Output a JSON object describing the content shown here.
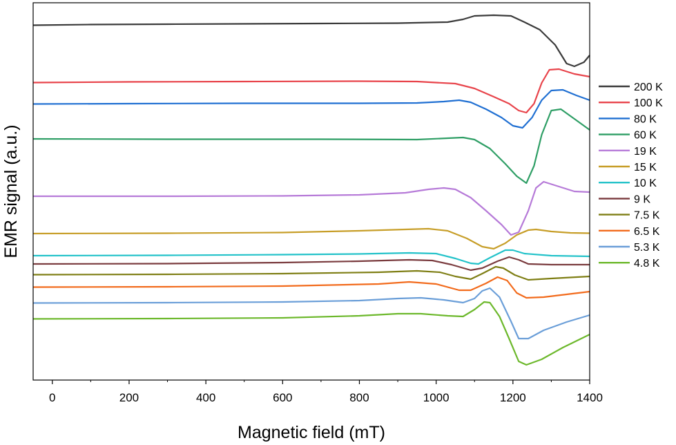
{
  "chart_data": {
    "type": "line",
    "title": "",
    "xlabel": "Magnetic field (mT)",
    "ylabel": "EMR signal (a.u.)",
    "xlim": [
      -50,
      1400
    ],
    "xticks": [
      0,
      200,
      400,
      600,
      800,
      1000,
      1200,
      1400
    ],
    "yticks": [],
    "grid": false,
    "legend": "right",
    "y_units": "arbitrary",
    "series": [
      {
        "name": "200 K",
        "color": "#3a3a3a",
        "points": [
          [
            -50,
            -36.5
          ],
          [
            100,
            -35.5
          ],
          [
            300,
            -35
          ],
          [
            500,
            -34.5
          ],
          [
            700,
            -34
          ],
          [
            900,
            -33.5
          ],
          [
            1030,
            -32
          ],
          [
            1070,
            -28
          ],
          [
            1100,
            -23
          ],
          [
            1150,
            -22
          ],
          [
            1195,
            -23
          ],
          [
            1230,
            -32
          ],
          [
            1270,
            -43
          ],
          [
            1310,
            -65
          ],
          [
            1340,
            -92
          ],
          [
            1360,
            -96
          ],
          [
            1385,
            -90
          ],
          [
            1400,
            -80
          ]
        ]
      },
      {
        "name": "100 K",
        "color": "#e8434a",
        "points": [
          [
            -50,
            -119.5
          ],
          [
            200,
            -118.5
          ],
          [
            500,
            -118
          ],
          [
            800,
            -117.5
          ],
          [
            950,
            -118
          ],
          [
            1050,
            -121
          ],
          [
            1100,
            -128
          ],
          [
            1150,
            -140
          ],
          [
            1190,
            -150
          ],
          [
            1215,
            -160
          ],
          [
            1235,
            -163
          ],
          [
            1255,
            -150
          ],
          [
            1275,
            -120
          ],
          [
            1295,
            -101
          ],
          [
            1320,
            -100
          ],
          [
            1360,
            -107
          ],
          [
            1400,
            -111
          ]
        ]
      },
      {
        "name": "80 K",
        "color": "#1f6fd2",
        "points": [
          [
            -50,
            -150.5
          ],
          [
            200,
            -150
          ],
          [
            500,
            -149.5
          ],
          [
            800,
            -149.5
          ],
          [
            950,
            -149
          ],
          [
            1020,
            -147
          ],
          [
            1060,
            -145
          ],
          [
            1090,
            -148
          ],
          [
            1130,
            -158
          ],
          [
            1170,
            -170
          ],
          [
            1200,
            -182
          ],
          [
            1225,
            -185
          ],
          [
            1250,
            -170
          ],
          [
            1275,
            -145
          ],
          [
            1300,
            -131
          ],
          [
            1330,
            -130
          ],
          [
            1365,
            -138
          ],
          [
            1400,
            -145
          ]
        ]
      },
      {
        "name": "60 K",
        "color": "#2e9e65",
        "points": [
          [
            -50,
            -201
          ],
          [
            300,
            -201.5
          ],
          [
            700,
            -201.5
          ],
          [
            950,
            -202
          ],
          [
            1030,
            -200
          ],
          [
            1070,
            -199
          ],
          [
            1100,
            -202
          ],
          [
            1140,
            -215
          ],
          [
            1180,
            -237
          ],
          [
            1210,
            -255
          ],
          [
            1235,
            -265
          ],
          [
            1255,
            -240
          ],
          [
            1275,
            -195
          ],
          [
            1300,
            -160
          ],
          [
            1325,
            -158
          ],
          [
            1360,
            -172
          ],
          [
            1400,
            -188
          ]
        ]
      },
      {
        "name": "19 K",
        "color": "#b67ad8",
        "points": [
          [
            -50,
            -284
          ],
          [
            300,
            -284
          ],
          [
            600,
            -283.5
          ],
          [
            800,
            -282
          ],
          [
            920,
            -279
          ],
          [
            980,
            -274
          ],
          [
            1020,
            -272
          ],
          [
            1050,
            -274
          ],
          [
            1090,
            -286
          ],
          [
            1130,
            -305
          ],
          [
            1170,
            -325
          ],
          [
            1195,
            -340
          ],
          [
            1215,
            -336
          ],
          [
            1240,
            -305
          ],
          [
            1260,
            -272
          ],
          [
            1280,
            -263
          ],
          [
            1320,
            -270
          ],
          [
            1360,
            -277
          ],
          [
            1400,
            -278
          ]
        ]
      },
      {
        "name": "15 K",
        "color": "#c79e28",
        "points": [
          [
            -50,
            -338
          ],
          [
            300,
            -337.5
          ],
          [
            600,
            -336.5
          ],
          [
            800,
            -334
          ],
          [
            920,
            -332
          ],
          [
            980,
            -331
          ],
          [
            1030,
            -334
          ],
          [
            1080,
            -345
          ],
          [
            1120,
            -357
          ],
          [
            1150,
            -360
          ],
          [
            1180,
            -352
          ],
          [
            1210,
            -340
          ],
          [
            1240,
            -333
          ],
          [
            1260,
            -332
          ],
          [
            1300,
            -335
          ],
          [
            1350,
            -337
          ],
          [
            1400,
            -337.5
          ]
        ]
      },
      {
        "name": "10 K",
        "color": "#22c2c9",
        "points": [
          [
            -50,
            -370
          ],
          [
            300,
            -369.5
          ],
          [
            600,
            -368.5
          ],
          [
            800,
            -367.5
          ],
          [
            930,
            -366
          ],
          [
            1000,
            -367
          ],
          [
            1050,
            -374
          ],
          [
            1090,
            -381
          ],
          [
            1110,
            -382
          ],
          [
            1140,
            -373
          ],
          [
            1180,
            -362
          ],
          [
            1200,
            -362
          ],
          [
            1230,
            -367
          ],
          [
            1300,
            -370
          ],
          [
            1400,
            -371
          ]
        ]
      },
      {
        "name": "9 K",
        "color": "#7a3b3e",
        "points": [
          [
            -50,
            -382
          ],
          [
            300,
            -381.5
          ],
          [
            600,
            -380
          ],
          [
            800,
            -378
          ],
          [
            930,
            -376
          ],
          [
            990,
            -377
          ],
          [
            1040,
            -383
          ],
          [
            1090,
            -391
          ],
          [
            1120,
            -388
          ],
          [
            1160,
            -378
          ],
          [
            1190,
            -372
          ],
          [
            1215,
            -376
          ],
          [
            1240,
            -382
          ],
          [
            1300,
            -383
          ],
          [
            1400,
            -383
          ]
        ]
      },
      {
        "name": "7.5 K",
        "color": "#7e7e14",
        "points": [
          [
            -50,
            -397.5
          ],
          [
            300,
            -397
          ],
          [
            600,
            -396
          ],
          [
            850,
            -394
          ],
          [
            950,
            -392
          ],
          [
            1010,
            -394
          ],
          [
            1050,
            -400
          ],
          [
            1090,
            -404
          ],
          [
            1120,
            -396
          ],
          [
            1155,
            -386
          ],
          [
            1175,
            -388
          ],
          [
            1205,
            -398
          ],
          [
            1240,
            -405
          ],
          [
            1300,
            -403
          ],
          [
            1400,
            -400
          ]
        ]
      },
      {
        "name": "6.5 K",
        "color": "#f26a1b",
        "points": [
          [
            -50,
            -415.5
          ],
          [
            300,
            -415
          ],
          [
            600,
            -414
          ],
          [
            850,
            -411
          ],
          [
            930,
            -408
          ],
          [
            1000,
            -411
          ],
          [
            1060,
            -420
          ],
          [
            1090,
            -420
          ],
          [
            1130,
            -410
          ],
          [
            1160,
            -401
          ],
          [
            1185,
            -406
          ],
          [
            1210,
            -424
          ],
          [
            1235,
            -431
          ],
          [
            1280,
            -430
          ],
          [
            1340,
            -426
          ],
          [
            1400,
            -422
          ]
        ]
      },
      {
        "name": "5.3 K",
        "color": "#6a9ed8",
        "points": [
          [
            -50,
            -438.5
          ],
          [
            300,
            -438
          ],
          [
            600,
            -437
          ],
          [
            800,
            -435
          ],
          [
            900,
            -432
          ],
          [
            960,
            -431
          ],
          [
            1020,
            -434
          ],
          [
            1070,
            -438
          ],
          [
            1100,
            -432
          ],
          [
            1120,
            -421
          ],
          [
            1140,
            -417
          ],
          [
            1165,
            -430
          ],
          [
            1195,
            -465
          ],
          [
            1215,
            -490
          ],
          [
            1240,
            -490
          ],
          [
            1280,
            -478
          ],
          [
            1340,
            -466
          ],
          [
            1400,
            -456
          ]
        ]
      },
      {
        "name": "4.8 K",
        "color": "#6cb82b",
        "points": [
          [
            -50,
            -461.5
          ],
          [
            300,
            -461
          ],
          [
            600,
            -460
          ],
          [
            800,
            -457
          ],
          [
            900,
            -454
          ],
          [
            960,
            -454
          ],
          [
            1030,
            -457
          ],
          [
            1070,
            -458
          ],
          [
            1100,
            -448
          ],
          [
            1125,
            -437
          ],
          [
            1140,
            -438
          ],
          [
            1165,
            -458
          ],
          [
            1190,
            -490
          ],
          [
            1215,
            -523
          ],
          [
            1235,
            -528
          ],
          [
            1275,
            -520
          ],
          [
            1330,
            -503
          ],
          [
            1400,
            -484
          ]
        ]
      }
    ]
  }
}
